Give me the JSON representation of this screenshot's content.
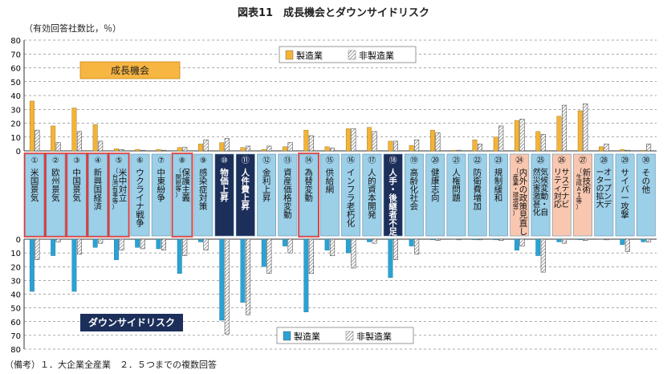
{
  "chart_data": {
    "type": "bar",
    "title": "図表11　成長機会とダウンサイドリスク",
    "unit_label": "（有効回答社数比，％）",
    "footnote": "（備考）１．大企業全産業　２．５つまでの複数回答",
    "upper_panel_label": "成長機会",
    "lower_panel_label": "ダウンサイドリスク",
    "upper_axis": {
      "ylim": [
        0,
        80
      ],
      "ticks": [
        "0",
        "10",
        "20",
        "30",
        "40",
        "50",
        "60",
        "70",
        "80"
      ]
    },
    "lower_axis": {
      "ylim": [
        0,
        80
      ],
      "ticks": [
        "0",
        "10",
        "20",
        "30",
        "40",
        "50",
        "60",
        "70",
        "80"
      ]
    },
    "legend": [
      "製造業",
      "非製造業"
    ],
    "legend_position": "top-right (upper panel), bottom-center (lower panel)",
    "grid": "dashed horizontal",
    "colors": {
      "manufacturing": "#f5b335",
      "manufacturing_risk": "#2aa3d4",
      "label_box": "#9ccfe8",
      "label_dark": "#1c2f5a",
      "highlight_red": "#e23a3a",
      "label_pink": "#f9c7b0",
      "panel_orange": "#f7b542",
      "panel_navy": "#1c2f5a"
    },
    "categories": [
      {
        "num": "①",
        "label": "米国景気",
        "note": "",
        "style": "normal",
        "red": true
      },
      {
        "num": "②",
        "label": "欧州景気",
        "note": "",
        "style": "normal",
        "red": true
      },
      {
        "num": "③",
        "label": "中国景気",
        "note": "",
        "style": "normal",
        "red": true
      },
      {
        "num": "④",
        "label": "新興国経済",
        "note": "",
        "style": "normal",
        "red": true
      },
      {
        "num": "⑤",
        "label": "米中対立",
        "note": "（台湾有事等）",
        "style": "normal",
        "red": true
      },
      {
        "num": "⑥",
        "label": "ウクライナ戦争",
        "note": "",
        "style": "normal",
        "red": false
      },
      {
        "num": "⑦",
        "label": "中東紛争",
        "note": "",
        "style": "normal",
        "red": false
      },
      {
        "num": "⑧",
        "label": "保護主義",
        "note": "（関税等）",
        "style": "normal",
        "red": true
      },
      {
        "num": "⑨",
        "label": "感染症対策",
        "note": "",
        "style": "normal",
        "red": false
      },
      {
        "num": "⑩",
        "label": "物価上昇",
        "note": "",
        "style": "dark",
        "red": false
      },
      {
        "num": "⑪",
        "label": "人件費上昇",
        "note": "",
        "style": "dark",
        "red": false
      },
      {
        "num": "⑫",
        "label": "金利上昇",
        "note": "",
        "style": "normal",
        "red": false
      },
      {
        "num": "⑬",
        "label": "資産価格変動",
        "note": "",
        "style": "normal",
        "red": false
      },
      {
        "num": "⑭",
        "label": "為替変動",
        "note": "",
        "style": "normal",
        "red": true
      },
      {
        "num": "⑮",
        "label": "供給網",
        "note": "",
        "style": "normal",
        "red": false
      },
      {
        "num": "⑯",
        "label": "インフラ老朽化",
        "note": "",
        "style": "normal",
        "red": false
      },
      {
        "num": "⑰",
        "label": "人的資本開発",
        "note": "",
        "style": "normal",
        "red": false
      },
      {
        "num": "⑱",
        "label": "人手・後継者不足",
        "note": "",
        "style": "dark",
        "red": false
      },
      {
        "num": "⑲",
        "label": "高齢化社会",
        "note": "",
        "style": "normal",
        "red": false
      },
      {
        "num": "⑳",
        "label": "健康志向",
        "note": "",
        "style": "normal",
        "red": false
      },
      {
        "num": "㉑",
        "label": "人権問題",
        "note": "",
        "style": "normal",
        "red": false
      },
      {
        "num": "㉒",
        "label": "防衛費増加",
        "note": "",
        "style": "normal",
        "red": false
      },
      {
        "num": "㉓",
        "label": "規制緩和",
        "note": "",
        "style": "normal",
        "red": false
      },
      {
        "num": "㉔",
        "label": "内外の政策見直し",
        "note": "（産業・環境等）",
        "style": "pink",
        "red": false
      },
      {
        "num": "㉕",
        "label": "気候変動・自然災害激甚化",
        "note": "",
        "style": "normal",
        "red": false
      },
      {
        "num": "㉖",
        "label": "サステナビリティ対応",
        "note": "",
        "style": "pink",
        "red": false
      },
      {
        "num": "㉗",
        "label": "新技術",
        "note": "（生成ＡＩ等）",
        "style": "pink",
        "red": false
      },
      {
        "num": "㉘",
        "label": "オープンデータの拡大",
        "note": "",
        "style": "normal",
        "red": false
      },
      {
        "num": "㉙",
        "label": "サイバー攻撃",
        "note": "",
        "style": "normal",
        "red": false
      },
      {
        "num": "㉚",
        "label": "その他",
        "note": "",
        "style": "normal",
        "red": false
      }
    ],
    "series_opportunity": [
      {
        "name": "製造業",
        "values": [
          36,
          18,
          31,
          19,
          1.5,
          1,
          1,
          2.5,
          5,
          6,
          2.5,
          1,
          3,
          15,
          3,
          16,
          17,
          7,
          4,
          15,
          0.5,
          8,
          10,
          22,
          14,
          25,
          29,
          3,
          1,
          0.5
        ]
      },
      {
        "name": "非製造業",
        "values": [
          15,
          6,
          14,
          7,
          1,
          0.5,
          0.5,
          2.5,
          8,
          9,
          3.5,
          3.5,
          6,
          11,
          2,
          16,
          14,
          7,
          8,
          13,
          0.5,
          5,
          18,
          23,
          12,
          33,
          34,
          5,
          0.5,
          5
        ]
      }
    ],
    "series_risk": [
      {
        "name": "製造業",
        "values": [
          38,
          12,
          38,
          6,
          15,
          6,
          7,
          25,
          2,
          59,
          46,
          20,
          5,
          53,
          8,
          10,
          2,
          28,
          5,
          0.5,
          0,
          0.5,
          0.5,
          8,
          12,
          2,
          0.5,
          0,
          4,
          2
        ]
      },
      {
        "name": "非製造業",
        "values": [
          15,
          2,
          11,
          3,
          8,
          7,
          8,
          12,
          8,
          69,
          55,
          25,
          10,
          25,
          12,
          21,
          3,
          15,
          11,
          1,
          0.5,
          0.5,
          1,
          5,
          24,
          3,
          1,
          0.5,
          9,
          2
        ]
      }
    ]
  }
}
